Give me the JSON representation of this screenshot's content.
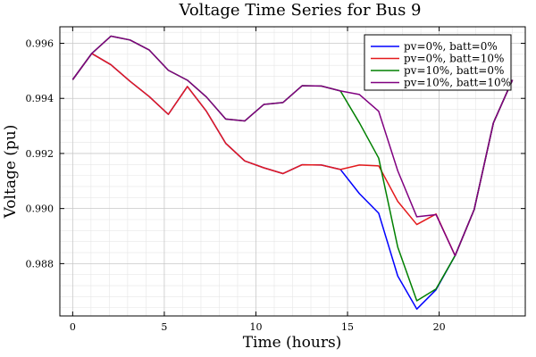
{
  "chart_data": {
    "type": "line",
    "title": "Voltage Time Series for Bus 9",
    "xlabel": "Time (hours)",
    "ylabel": "Voltage (pu)",
    "xlim": [
      -0.7,
      24.7
    ],
    "ylim": [
      0.9861,
      0.9966
    ],
    "xticks": [
      0,
      5,
      10,
      15,
      20
    ],
    "yticks": [
      0.988,
      0.99,
      0.992,
      0.994,
      0.996
    ],
    "grid": true,
    "legend_position": "top-right",
    "x": [
      0,
      1.04,
      2.09,
      3.13,
      4.17,
      5.22,
      6.26,
      7.3,
      8.35,
      9.39,
      10.43,
      11.48,
      12.52,
      13.57,
      14.61,
      15.65,
      16.7,
      17.74,
      18.78,
      19.83,
      20.87,
      21.91,
      22.96,
      24.0
    ],
    "series": [
      {
        "name": "pv=0%, batt=0%",
        "color": "#0000ff",
        "values": [
          0.99468,
          0.99563,
          0.99522,
          0.99462,
          0.99407,
          0.99342,
          0.99443,
          0.99353,
          0.99237,
          0.99173,
          0.99148,
          0.99127,
          0.99159,
          0.99158,
          0.99142,
          0.99054,
          0.98983,
          0.98755,
          0.98635,
          0.98705,
          0.98829,
          0.98996,
          0.99311,
          0.99467
        ]
      },
      {
        "name": "pv=0%, batt=10%",
        "color": "#e41a1c",
        "values": [
          0.99468,
          0.99563,
          0.99522,
          0.99462,
          0.99407,
          0.99342,
          0.99443,
          0.99353,
          0.99237,
          0.99173,
          0.99148,
          0.99127,
          0.99159,
          0.99158,
          0.99142,
          0.99158,
          0.99155,
          0.99026,
          0.98942,
          0.9898,
          0.98829,
          0.98996,
          0.99311,
          0.99467
        ]
      },
      {
        "name": "pv=10%, batt=0%",
        "color": "#008000",
        "values": [
          0.99468,
          0.99563,
          0.99626,
          0.99612,
          0.99576,
          0.99502,
          0.99466,
          0.99405,
          0.99325,
          0.99318,
          0.99378,
          0.99385,
          0.99446,
          0.99445,
          0.99427,
          0.99311,
          0.99183,
          0.9886,
          0.98665,
          0.98708,
          0.98829,
          0.98996,
          0.99311,
          0.99467
        ]
      },
      {
        "name": "pv=10%, batt=10%",
        "color": "#800080",
        "values": [
          0.99468,
          0.99563,
          0.99626,
          0.99612,
          0.99576,
          0.99502,
          0.99466,
          0.99405,
          0.99325,
          0.99318,
          0.99378,
          0.99385,
          0.99446,
          0.99445,
          0.99427,
          0.99414,
          0.99353,
          0.99137,
          0.9897,
          0.98978,
          0.98829,
          0.98996,
          0.99311,
          0.99467
        ]
      }
    ]
  }
}
